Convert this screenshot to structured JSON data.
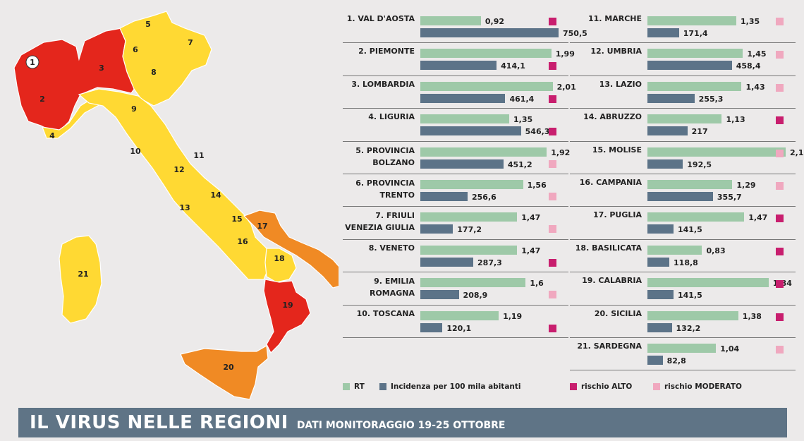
{
  "title": "IL VIRUS NELLE REGIONI",
  "subtitle": "DATI MONITORAGGIO 19-25 OTTOBRE",
  "colors": {
    "rt": "#9ec9a8",
    "incidence": "#5c7388",
    "risk_high": "#c81e6e",
    "risk_moderate": "#f0a8bf",
    "map_red": "#e4261c",
    "map_yellow": "#ffd933",
    "map_orange": "#f08a24"
  },
  "legend": {
    "rt": "RT",
    "incidence": "Incidenza per 100 mila abitanti",
    "risk_high": "rischio ALTO",
    "risk_moderate": "rischio MODERATO"
  },
  "map_labels": [
    "1",
    "2",
    "3",
    "4",
    "5",
    "6",
    "7",
    "8",
    "9",
    "10",
    "11",
    "12",
    "13",
    "14",
    "15",
    "16",
    "17",
    "18",
    "19",
    "20",
    "21"
  ],
  "chart_data": {
    "type": "bar",
    "series": [
      {
        "name": "RT",
        "values": [
          0.92,
          1.99,
          2.01,
          1.35,
          1.92,
          1.56,
          1.47,
          1.47,
          1.6,
          1.19,
          1.35,
          1.45,
          1.43,
          1.13,
          2.1,
          1.29,
          1.47,
          0.83,
          1.84,
          1.38,
          1.04
        ]
      },
      {
        "name": "Incidenza per 100 mila abitanti",
        "values": [
          750.5,
          414.1,
          461.4,
          546.3,
          451.2,
          256.6,
          177.2,
          287.3,
          208.9,
          120.1,
          171.4,
          458.4,
          255.3,
          217,
          192.5,
          355.7,
          141.5,
          118.8,
          141.5,
          132.2,
          82.8
        ]
      }
    ],
    "regions": [
      {
        "label": [
          "1. VAL D'AOSTA"
        ],
        "rt": 0.92,
        "rt_text": "0,92",
        "inc": 750.5,
        "inc_text": "750,5",
        "risk": "high",
        "zone": "red"
      },
      {
        "label": [
          "2. PIEMONTE"
        ],
        "rt": 1.99,
        "rt_text": "1,99",
        "inc": 414.1,
        "inc_text": "414,1",
        "risk": "high",
        "zone": "red"
      },
      {
        "label": [
          "3. LOMBARDIA"
        ],
        "rt": 2.01,
        "rt_text": "2,01",
        "inc": 461.4,
        "inc_text": "461,4",
        "risk": "high",
        "zone": "red"
      },
      {
        "label": [
          "4. LIGURIA"
        ],
        "rt": 1.35,
        "rt_text": "1,35",
        "inc": 546.3,
        "inc_text": "546,3",
        "risk": "high",
        "zone": "yellow"
      },
      {
        "label": [
          "5. PROVINCIA",
          "BOLZANO"
        ],
        "rt": 1.92,
        "rt_text": "1,92",
        "inc": 451.2,
        "inc_text": "451,2",
        "risk": "moderate",
        "zone": "yellow"
      },
      {
        "label": [
          "6. PROVINCIA",
          "TRENTO"
        ],
        "rt": 1.56,
        "rt_text": "1,56",
        "inc": 256.6,
        "inc_text": "256,6",
        "risk": "moderate",
        "zone": "yellow"
      },
      {
        "label": [
          "7. FRIULI",
          "VENEZIA GIULIA"
        ],
        "rt": 1.47,
        "rt_text": "1,47",
        "inc": 177.2,
        "inc_text": "177,2",
        "risk": "moderate",
        "zone": "yellow"
      },
      {
        "label": [
          "8. VENETO"
        ],
        "rt": 1.47,
        "rt_text": "1,47",
        "inc": 287.3,
        "inc_text": "287,3",
        "risk": "high",
        "zone": "yellow"
      },
      {
        "label": [
          "9. EMILIA",
          "ROMAGNA"
        ],
        "rt": 1.6,
        "rt_text": "1,6",
        "inc": 208.9,
        "inc_text": "208,9",
        "risk": "moderate",
        "zone": "yellow"
      },
      {
        "label": [
          "10. TOSCANA"
        ],
        "rt": 1.19,
        "rt_text": "1,19",
        "inc": 120.1,
        "inc_text": "120,1",
        "risk": "high",
        "zone": "yellow"
      },
      {
        "label": [
          "11. MARCHE"
        ],
        "rt": 1.35,
        "rt_text": "1,35",
        "inc": 171.4,
        "inc_text": "171,4",
        "risk": "moderate",
        "zone": "yellow"
      },
      {
        "label": [
          "12. UMBRIA"
        ],
        "rt": 1.45,
        "rt_text": "1,45",
        "inc": 458.4,
        "inc_text": "458,4",
        "risk": "moderate",
        "zone": "yellow"
      },
      {
        "label": [
          "13. LAZIO"
        ],
        "rt": 1.43,
        "rt_text": "1,43",
        "inc": 255.3,
        "inc_text": "255,3",
        "risk": "moderate",
        "zone": "yellow"
      },
      {
        "label": [
          "14. ABRUZZO"
        ],
        "rt": 1.13,
        "rt_text": "1,13",
        "inc": 217,
        "inc_text": "217",
        "risk": "high",
        "zone": "yellow"
      },
      {
        "label": [
          "15. MOLISE"
        ],
        "rt": 2.1,
        "rt_text": "2,1",
        "inc": 192.5,
        "inc_text": "192,5",
        "risk": "moderate",
        "zone": "yellow"
      },
      {
        "label": [
          "16. CAMPANIA"
        ],
        "rt": 1.29,
        "rt_text": "1,29",
        "inc": 355.7,
        "inc_text": "355,7",
        "risk": "moderate",
        "zone": "yellow"
      },
      {
        "label": [
          "17. PUGLIA"
        ],
        "rt": 1.47,
        "rt_text": "1,47",
        "inc": 141.5,
        "inc_text": "141,5",
        "risk": "high",
        "zone": "orange"
      },
      {
        "label": [
          "18. BASILICATA"
        ],
        "rt": 0.83,
        "rt_text": "0,83",
        "inc": 118.8,
        "inc_text": "118,8",
        "risk": "high",
        "zone": "yellow"
      },
      {
        "label": [
          "19. CALABRIA"
        ],
        "rt": 1.84,
        "rt_text": "1,84",
        "inc": 141.5,
        "inc_text": "141,5",
        "risk": "high",
        "zone": "red"
      },
      {
        "label": [
          "20. SICILIA"
        ],
        "rt": 1.38,
        "rt_text": "1,38",
        "inc": 132.2,
        "inc_text": "132,2",
        "risk": "high",
        "zone": "orange"
      },
      {
        "label": [
          "21. SARDEGNA"
        ],
        "rt": 1.04,
        "rt_text": "1,04",
        "inc": 82.8,
        "inc_text": "82,8",
        "risk": "moderate",
        "zone": "yellow"
      }
    ]
  }
}
